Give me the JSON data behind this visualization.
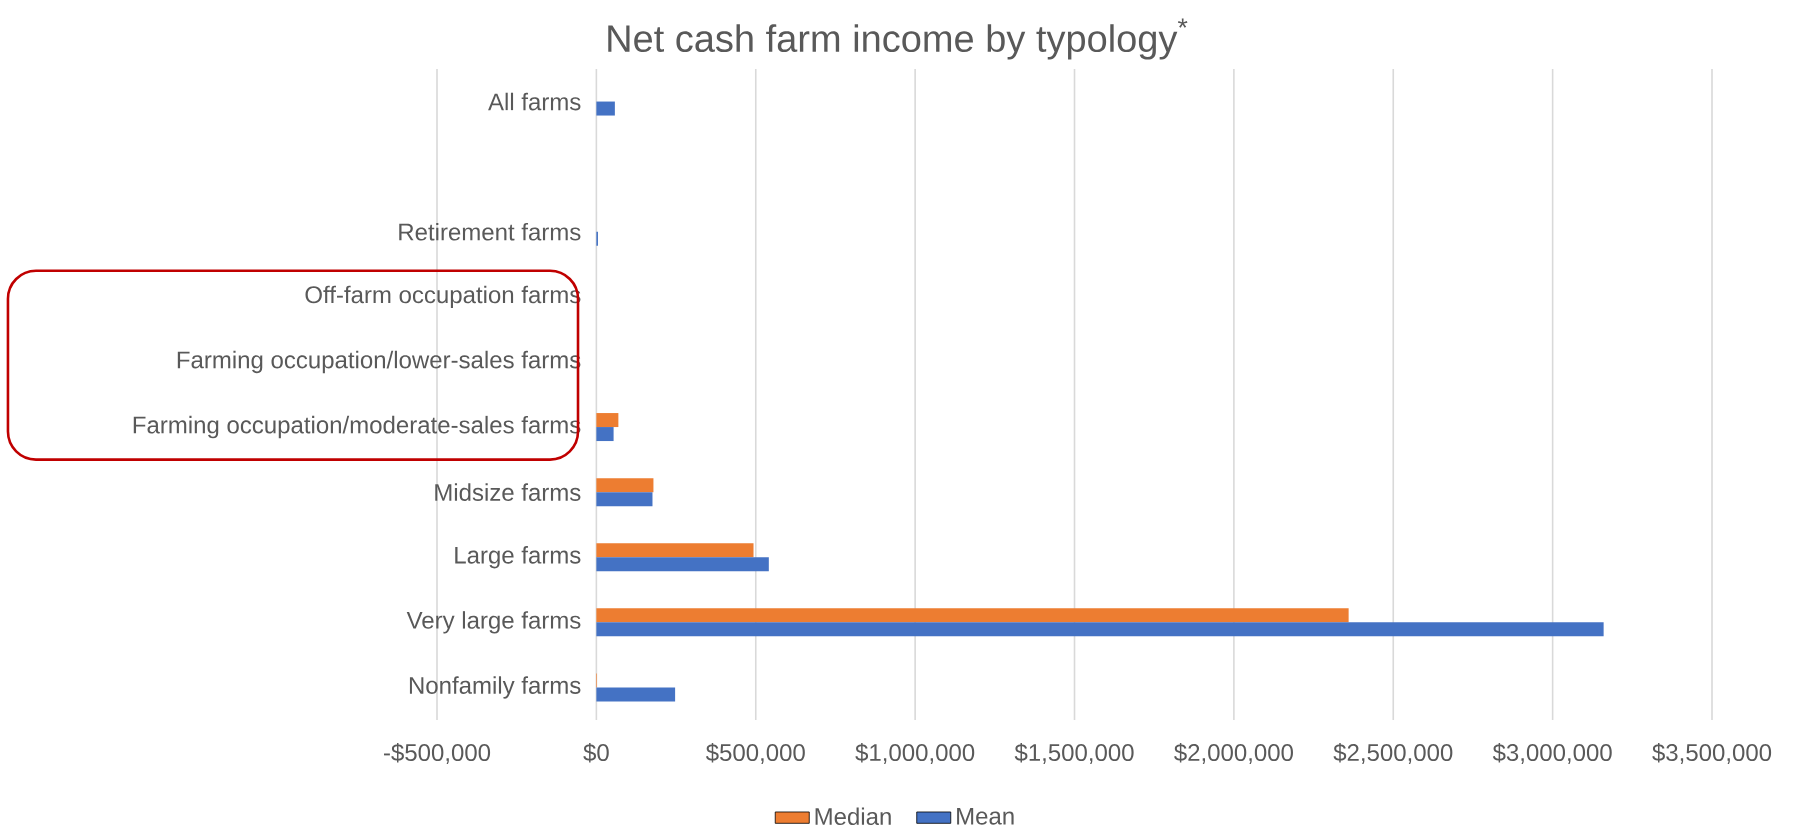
{
  "chart_data": {
    "type": "bar",
    "orientation": "horizontal",
    "title": "Net cash farm income by typology$^{*}$",
    "categories": [
      "All farms",
      null,
      "Retirement farms",
      "Off-farm occupation farms",
      "Farming occupation/lower-sales farms",
      "Farming occupation/moderate-sales farms",
      "Midsize farms",
      "Large farms",
      "Very large farms",
      "Nonfamily farms"
    ],
    "series": [
      {
        "name": "Median",
        "color": "#ed7d31",
        "values": [
          null,
          null,
          0,
          null,
          null,
          69000,
          179000,
          493000,
          2360000,
          2000
        ]
      },
      {
        "name": "Mean",
        "color": "#4472c4",
        "values": [
          58000,
          null,
          5000,
          null,
          null,
          54000,
          176000,
          541000,
          3160000,
          247000
        ]
      }
    ],
    "xlim": [
      -500000,
      3500000
    ],
    "xticks": [
      {
        "value": -500000,
        "label": "-$500,000"
      },
      {
        "value": 0,
        "label": "$0"
      },
      {
        "value": 500000,
        "label": "$500,000"
      },
      {
        "value": 1000000,
        "label": "$1,000,000"
      },
      {
        "value": 1500000,
        "label": "$1,500,000"
      },
      {
        "value": 2000000,
        "label": "$2,000,000"
      },
      {
        "value": 2500000,
        "label": "$2,500,000"
      },
      {
        "value": 3000000,
        "label": "$3,000,000"
      },
      {
        "value": 3500000,
        "label": "$3,500,000"
      }
    ],
    "grid": "x",
    "legend": "bottom"
  }
}
